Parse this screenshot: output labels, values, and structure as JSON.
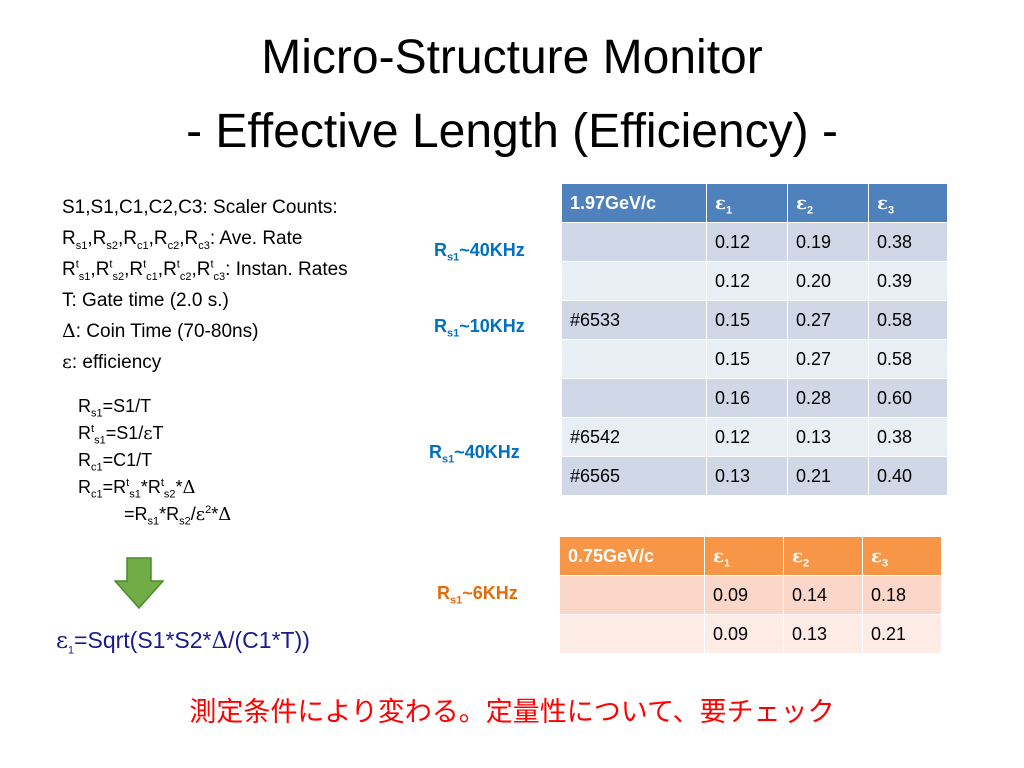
{
  "title": {
    "line1": "Micro-Structure Monitor",
    "line2": "- Effective Length (Efficiency) -"
  },
  "definitions": {
    "scaler": "S1,S1,C1,C2,C3: Scaler Counts:",
    "ave_rate_text": ": Ave. Rate",
    "instan_rate_text": ": Instan. Rates",
    "gate_time": "T: Gate time (2.0 s.)",
    "coin_time": ": Coin Time (70-80ns)",
    "efficiency": ": efficiency"
  },
  "equations": {
    "eq1_rhs": "=S1/T",
    "eq2_rhs": "=S1/",
    "eq2_tail": "T",
    "eq3_rhs": "=C1/T"
  },
  "formula": {
    "rhs": "=Sqrt(S1*S2*",
    "tail": "/(C1*T))"
  },
  "footer_note": "測定条件により変わる。定量性について、要チェック",
  "labels": {
    "rate_a": "~40KHz",
    "rate_b": "~10KHz",
    "rate_c": "~40KHz",
    "rate_d": "~6KHz"
  },
  "table1": {
    "header": [
      "1.97GeV/c",
      "ε1",
      "ε2",
      "ε3"
    ],
    "rows": [
      [
        "",
        "0.12",
        "0.19",
        "0.38"
      ],
      [
        "",
        "0.12",
        "0.20",
        "0.39"
      ],
      [
        "#6533",
        "0.15",
        "0.27",
        "0.58"
      ],
      [
        "",
        "0.15",
        "0.27",
        "0.58"
      ],
      [
        "",
        "0.16",
        "0.28",
        "0.60"
      ],
      [
        "#6542",
        "0.12",
        "0.13",
        "0.38"
      ],
      [
        "#6565",
        "0.13",
        "0.21",
        "0.40"
      ]
    ]
  },
  "table2": {
    "header": [
      "0.75GeV/c",
      "ε1",
      "ε2",
      "ε3"
    ],
    "rows": [
      [
        "",
        "0.09",
        "0.14",
        "0.18"
      ],
      [
        "",
        "0.09",
        "0.13",
        "0.21"
      ]
    ]
  },
  "colors": {
    "table1_header": "#4f81bd",
    "table2_header": "#f79646",
    "label_blue": "#0070c0",
    "label_orange": "#e36c09",
    "note_red": "#ff0000",
    "arrow_green": "#70ad47"
  },
  "icons": {
    "arrow": "down-arrow-icon"
  }
}
